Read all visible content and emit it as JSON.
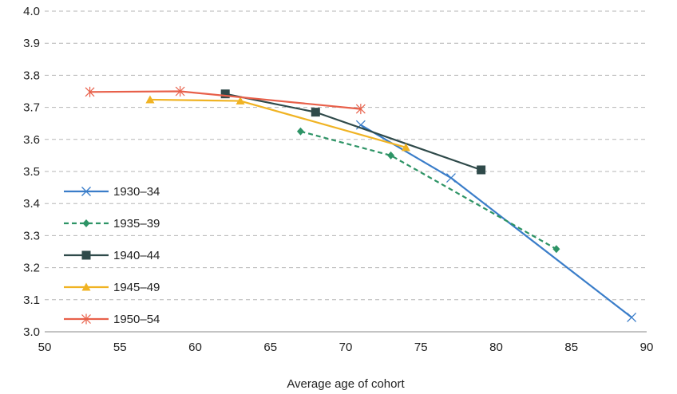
{
  "chart_data": {
    "type": "line",
    "title": "",
    "xlabel": "Average age of cohort",
    "ylabel": "",
    "xlim": [
      50,
      90
    ],
    "ylim": [
      3.0,
      4.0
    ],
    "xticks": [
      "50",
      "55",
      "60",
      "65",
      "70",
      "75",
      "80",
      "85",
      "90"
    ],
    "yticks": [
      "3.0",
      "3.1",
      "3.2",
      "3.3",
      "3.4",
      "3.5",
      "3.6",
      "3.7",
      "3.8",
      "3.9",
      "4.0"
    ],
    "grid": "horizontal dashed",
    "legend_position": "left",
    "series": [
      {
        "name": "1930–34",
        "color": "#3a7dc9",
        "dash": "solid",
        "marker": "x",
        "points": [
          [
            71,
            3.645
          ],
          [
            77,
            3.48
          ],
          [
            89,
            3.045
          ]
        ]
      },
      {
        "name": "1935–39",
        "color": "#2e9466",
        "dash": "dashed",
        "marker": "diamond",
        "points": [
          [
            67,
            3.625
          ],
          [
            73,
            3.55
          ],
          [
            84,
            3.258
          ]
        ]
      },
      {
        "name": "1940–44",
        "color": "#2f4a4a",
        "dash": "solid",
        "marker": "square",
        "points": [
          [
            62,
            3.742
          ],
          [
            68,
            3.685
          ],
          [
            79,
            3.505
          ]
        ]
      },
      {
        "name": "1945–49",
        "color": "#f0b323",
        "dash": "solid",
        "marker": "triangle",
        "points": [
          [
            57,
            3.724
          ],
          [
            63,
            3.72
          ],
          [
            74,
            3.575
          ]
        ]
      },
      {
        "name": "1950–54",
        "color": "#e8604a",
        "dash": "solid",
        "marker": "asterisk",
        "points": [
          [
            53,
            3.748
          ],
          [
            59,
            3.75
          ],
          [
            71,
            3.695
          ]
        ]
      }
    ]
  }
}
